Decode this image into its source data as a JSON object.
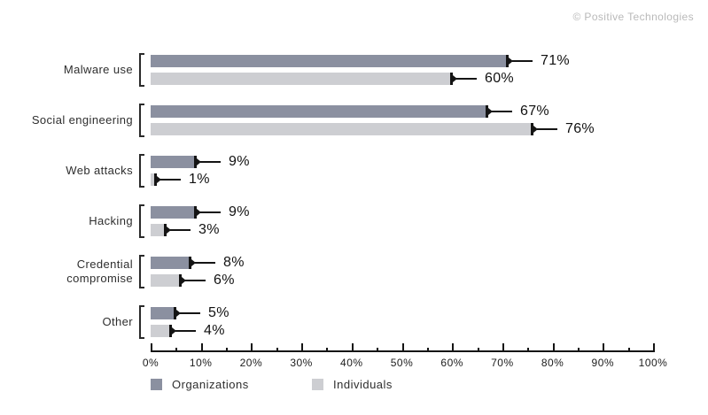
{
  "watermark": "© Positive Technologies",
  "chart_data": {
    "type": "bar",
    "orientation": "horizontal",
    "title": "",
    "categories": [
      "Malware use",
      "Social engineering",
      "Web attacks",
      "Hacking",
      "Credential\ncompromise",
      "Other"
    ],
    "series": [
      {
        "name": "Organizations",
        "color": "#8b90a0",
        "values": [
          71,
          67,
          9,
          9,
          8,
          5
        ]
      },
      {
        "name": "Individuals",
        "color": "#cdced2",
        "values": [
          60,
          76,
          1,
          3,
          6,
          4
        ]
      }
    ],
    "value_suffix": "%",
    "xlim": [
      0,
      100
    ],
    "x_major_tick_step": 10,
    "x_minor_tick_step": 5,
    "x_tick_labels": [
      "0%",
      "10%",
      "20%",
      "30%",
      "40%",
      "50%",
      "60%",
      "70%",
      "80%",
      "90%",
      "100%"
    ],
    "grid": false,
    "legend_position": "bottom-left",
    "annotation_style": "bar-end cap with leader line to value label",
    "category_bracket": true
  }
}
